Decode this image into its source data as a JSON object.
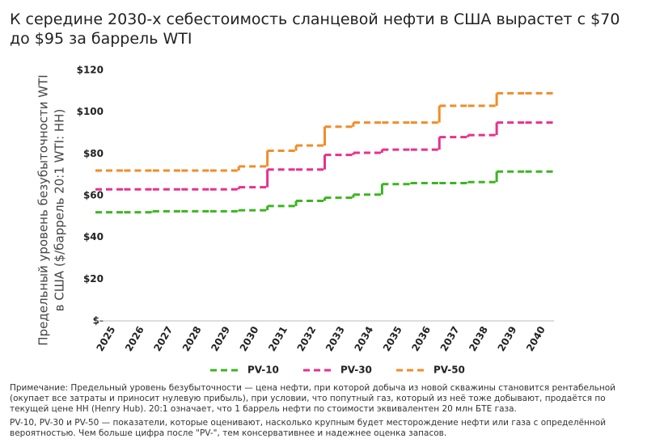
{
  "chart_data": {
    "type": "step",
    "title": "К середине 2030-х себестоимость сланцевой нефти в США вырастет с $70 до $95 за баррель WTI",
    "y_label": [
      "Предельный уровень безубыточности WTI",
      "в США ($/баррель 20:1 WTI: HH)"
    ],
    "categories": [
      "2025",
      "2026",
      "2027",
      "2028",
      "2029",
      "2030",
      "2031",
      "2032",
      "2033",
      "2034",
      "2035",
      "2036",
      "2037",
      "2038",
      "2039",
      "2040"
    ],
    "series": [
      {
        "name": "PV-10",
        "color": "#3cb521",
        "values": [
          52,
          52,
          52.5,
          52.5,
          52.5,
          53,
          55,
          57.5,
          59,
          60.5,
          65.5,
          66,
          66,
          66.5,
          71.5,
          71.5
        ]
      },
      {
        "name": "PV-30",
        "color": "#e8318a",
        "values": [
          63,
          63,
          63,
          63,
          63,
          64,
          72.5,
          72.5,
          79.5,
          80.5,
          82,
          82,
          88,
          89,
          95,
          95
        ]
      },
      {
        "name": "PV-50",
        "color": "#f28c28",
        "values": [
          72,
          72,
          72,
          72,
          72,
          74,
          81.5,
          84,
          93,
          95,
          95,
          95,
          103,
          103,
          109,
          109
        ]
      }
    ],
    "ylim": [
      0,
      120
    ],
    "yticks": [
      {
        "value": 0,
        "label": "$-"
      },
      {
        "value": 20,
        "label": "$20"
      },
      {
        "value": 40,
        "label": "$40"
      },
      {
        "value": 60,
        "label": "$60"
      },
      {
        "value": 80,
        "label": "$80"
      },
      {
        "value": 100,
        "label": "$100"
      },
      {
        "value": 120,
        "label": "$120"
      }
    ],
    "notes": [
      "Примечание: Предельный уровень безубыточности — цена нефти, при которой добыча из новой скважины становится рентабельной (окупает все затраты и приносит нулевую прибыль), при условии, что попутный газ, который из неё тоже добывают, продаётся по текущей цене HH (Henry Hub). 20:1 означает, что 1 баррель нефти по стоимости эквивалентен 20 млн БТЕ газа.",
      "PV-10, PV-30 и PV-50 — показатели, которые оценивают, насколько крупным будет месторождение нефти или газа с определённой вероятностью. Чем больше цифра после \"PV-\", тем консервативнее и надежнее оценка запасов."
    ]
  }
}
